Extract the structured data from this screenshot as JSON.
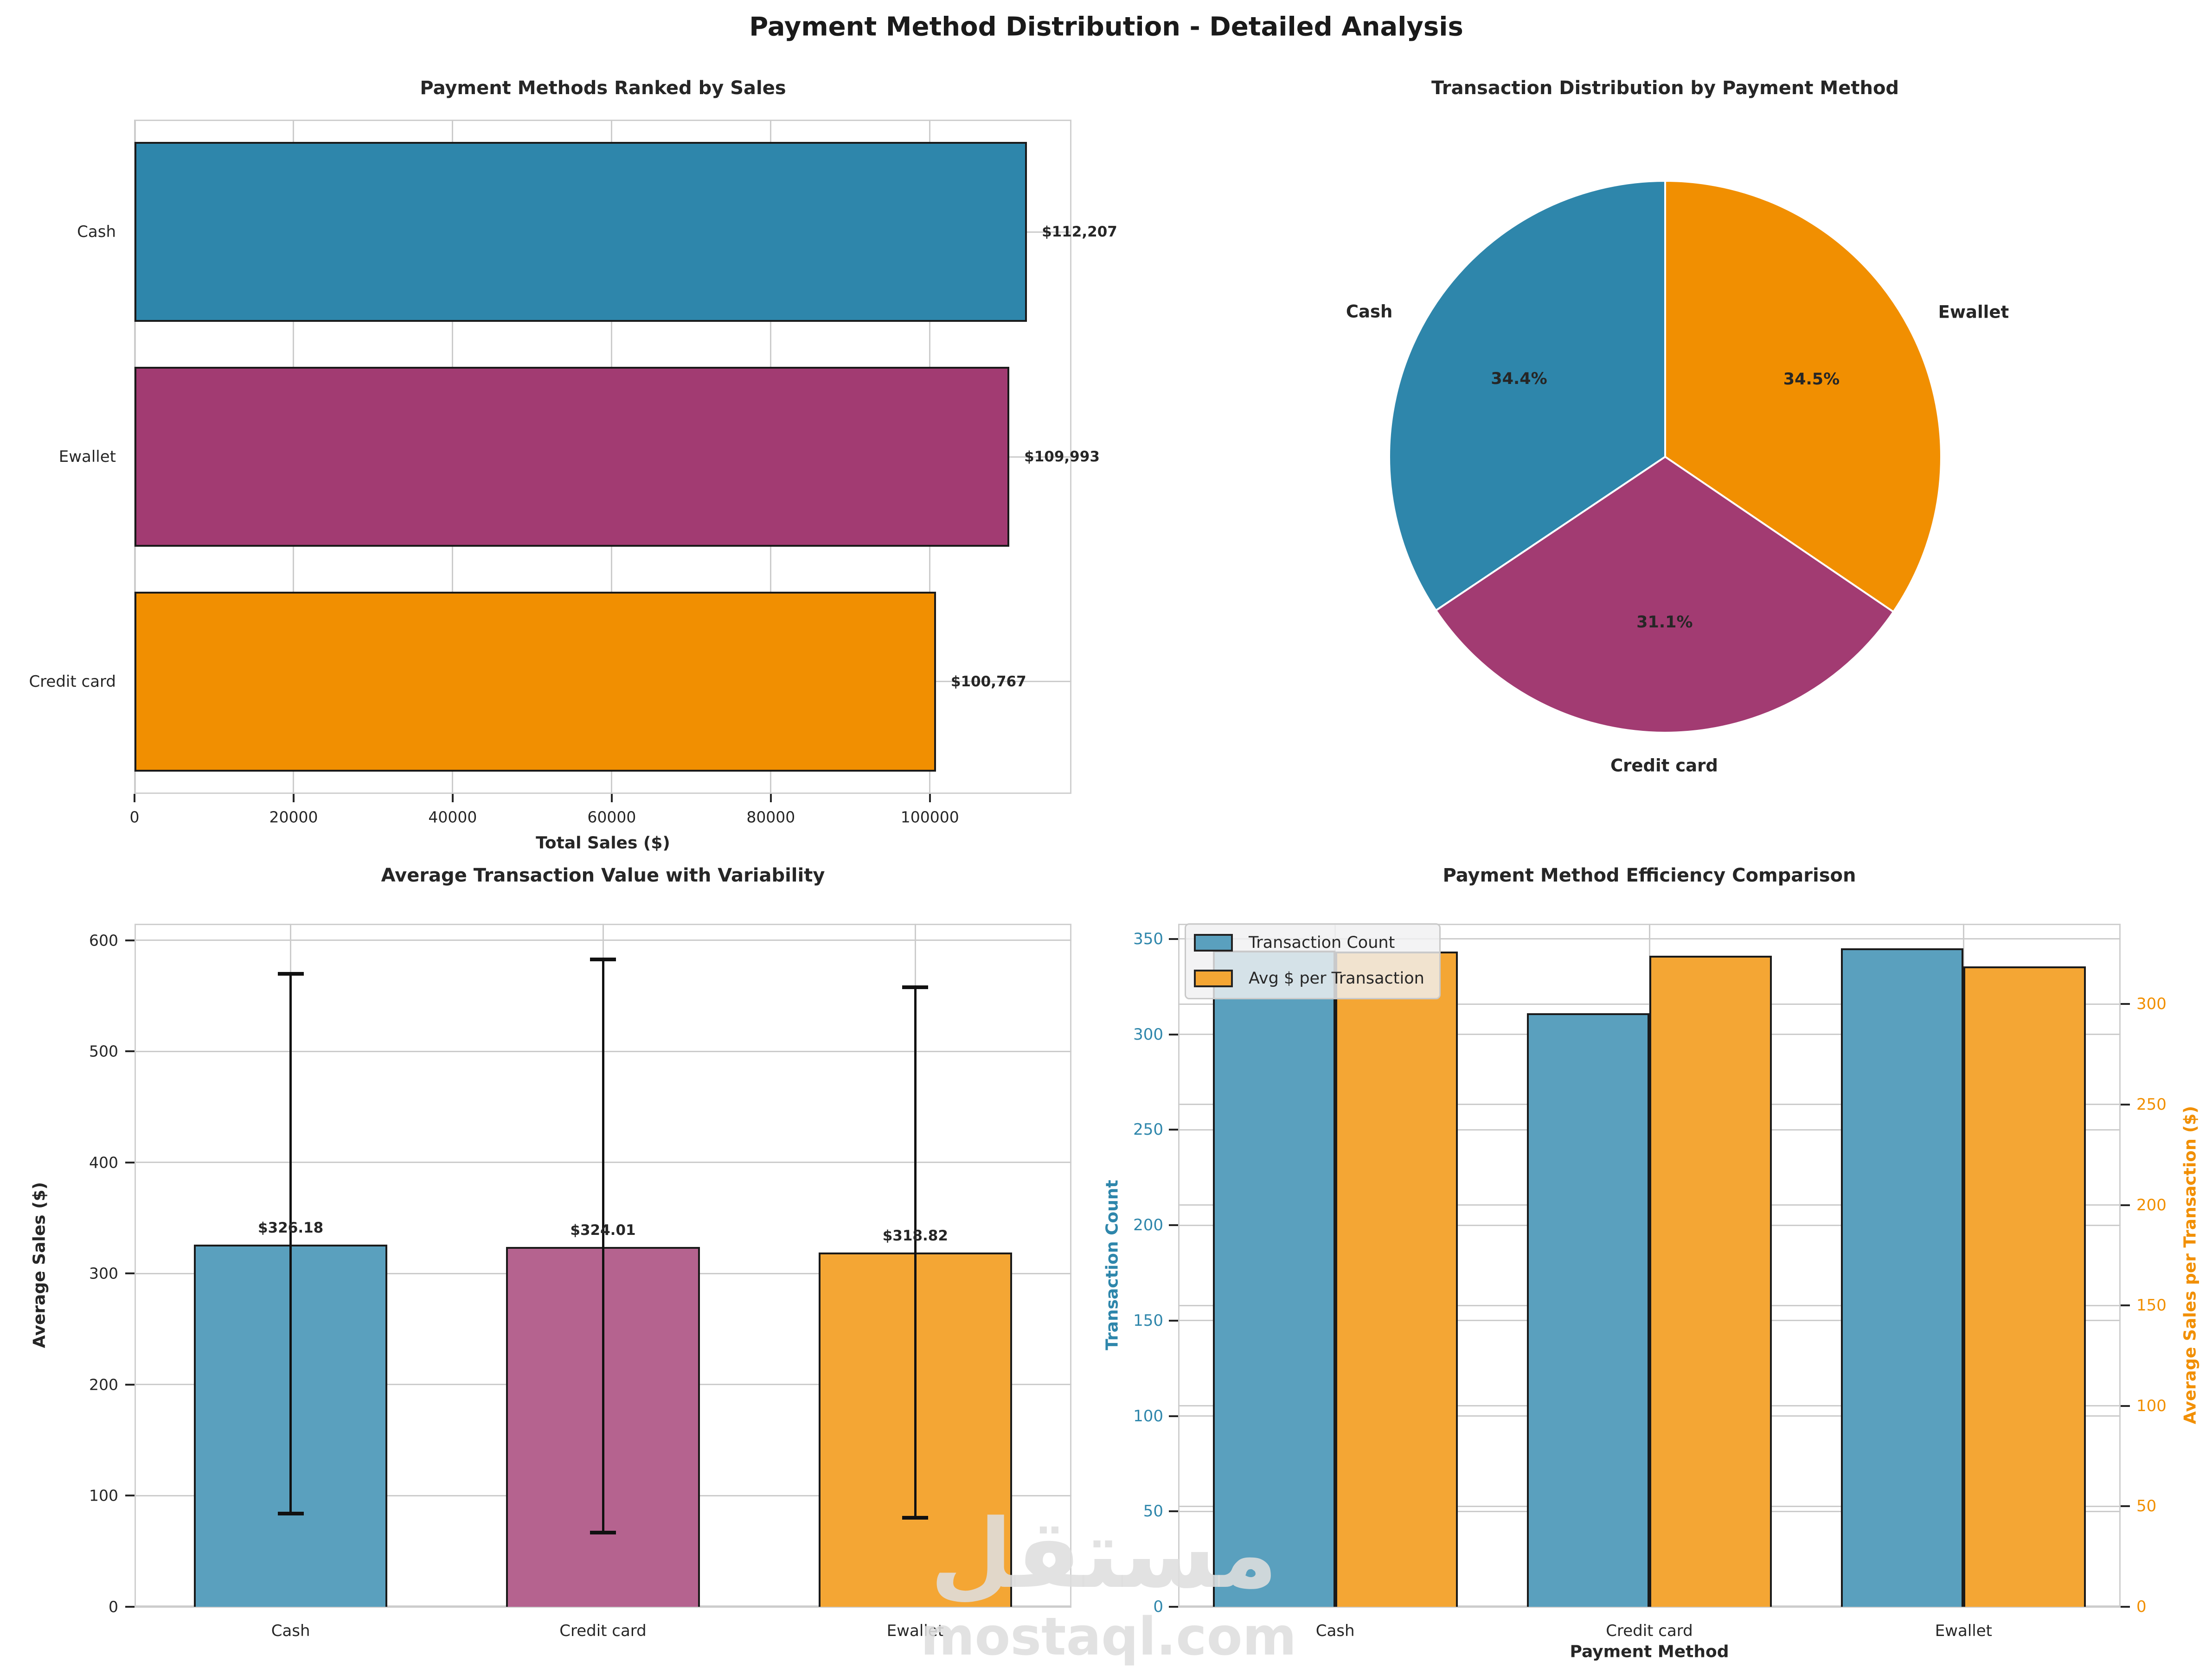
{
  "figure": {
    "title": "Payment Method Distribution - Detailed Analysis"
  },
  "watermark": {
    "line1": "مستقل",
    "line2": "mostaql.com"
  },
  "palette": {
    "blue": "#2E86AB",
    "magenta": "#A23B72",
    "orange": "#F18F01",
    "blue_light": "#5AA0BE",
    "magenta_light": "#B5638F",
    "orange_light": "#F4A634",
    "grid": "#cccccc",
    "spine": "#cfcfcf",
    "text": "#262626",
    "edge": "#1a1a1a"
  },
  "chart_data": [
    {
      "id": "sales_ranked",
      "type": "bar",
      "orientation": "horizontal",
      "title": "Payment Methods Ranked by Sales",
      "xlabel": "Total Sales ($)",
      "categories": [
        "Cash",
        "Ewallet",
        "Credit card"
      ],
      "values": [
        112207,
        109993,
        100767
      ],
      "value_labels": [
        "$112,207",
        "$109,993",
        "$100,767"
      ],
      "colors": [
        "#2E86AB",
        "#A23B72",
        "#F18F01"
      ],
      "xticks": [
        0,
        20000,
        40000,
        60000,
        80000,
        100000
      ],
      "xlim": [
        0,
        117800
      ],
      "grid": true
    },
    {
      "id": "txn_distribution",
      "type": "pie",
      "title": "Transaction Distribution by Payment Method",
      "start": "top",
      "direction": "clockwise",
      "slices": [
        {
          "label": "Ewallet",
          "pct": 34.5,
          "pct_label": "34.5%",
          "color": "#F18F01"
        },
        {
          "label": "Credit card",
          "pct": 31.1,
          "pct_label": "31.1%",
          "color": "#A23B72"
        },
        {
          "label": "Cash",
          "pct": 34.4,
          "pct_label": "34.4%",
          "color": "#2E86AB"
        }
      ]
    },
    {
      "id": "avg_value",
      "type": "bar",
      "orientation": "vertical",
      "title": "Average Transaction Value with Variability",
      "ylabel": "Average Sales ($)",
      "categories": [
        "Cash",
        "Credit card",
        "Ewallet"
      ],
      "values": [
        326.18,
        324.01,
        318.82
      ],
      "value_labels": [
        "$326.18",
        "$324.01",
        "$318.82"
      ],
      "colors": [
        "#5AA0BE",
        "#B5638F",
        "#F4A634"
      ],
      "whisker_low": [
        84,
        67,
        80
      ],
      "whisker_high": [
        570,
        583,
        558
      ],
      "yticks": [
        0,
        100,
        200,
        300,
        400,
        500,
        600
      ],
      "ylim": [
        0,
        615
      ],
      "grid": true
    },
    {
      "id": "efficiency",
      "type": "grouped-bar-dual-axis",
      "title": "Payment Method Efficiency Comparison",
      "xlabel": "Payment Method",
      "ylabel_left": "Transaction Count",
      "ylabel_right": "Average Sales per Transaction ($)",
      "categories": [
        "Cash",
        "Credit card",
        "Ewallet"
      ],
      "series": [
        {
          "name": "Transaction Count",
          "axis": "left",
          "color": "#5AA0BE",
          "values": [
            344,
            311,
            345
          ]
        },
        {
          "name": "Avg $ per Transaction",
          "axis": "right",
          "color": "#F4A634",
          "values": [
            326.18,
            324.01,
            318.82
          ]
        }
      ],
      "yticks_left": [
        0,
        50,
        100,
        150,
        200,
        250,
        300,
        350
      ],
      "yticks_right": [
        0,
        50,
        100,
        150,
        200,
        250,
        300
      ],
      "ylim_left": [
        0,
        358
      ],
      "ylim_right": [
        0,
        340
      ],
      "axis_color_left": "#2E86AB",
      "axis_color_right": "#F18F01",
      "grid": true
    }
  ]
}
